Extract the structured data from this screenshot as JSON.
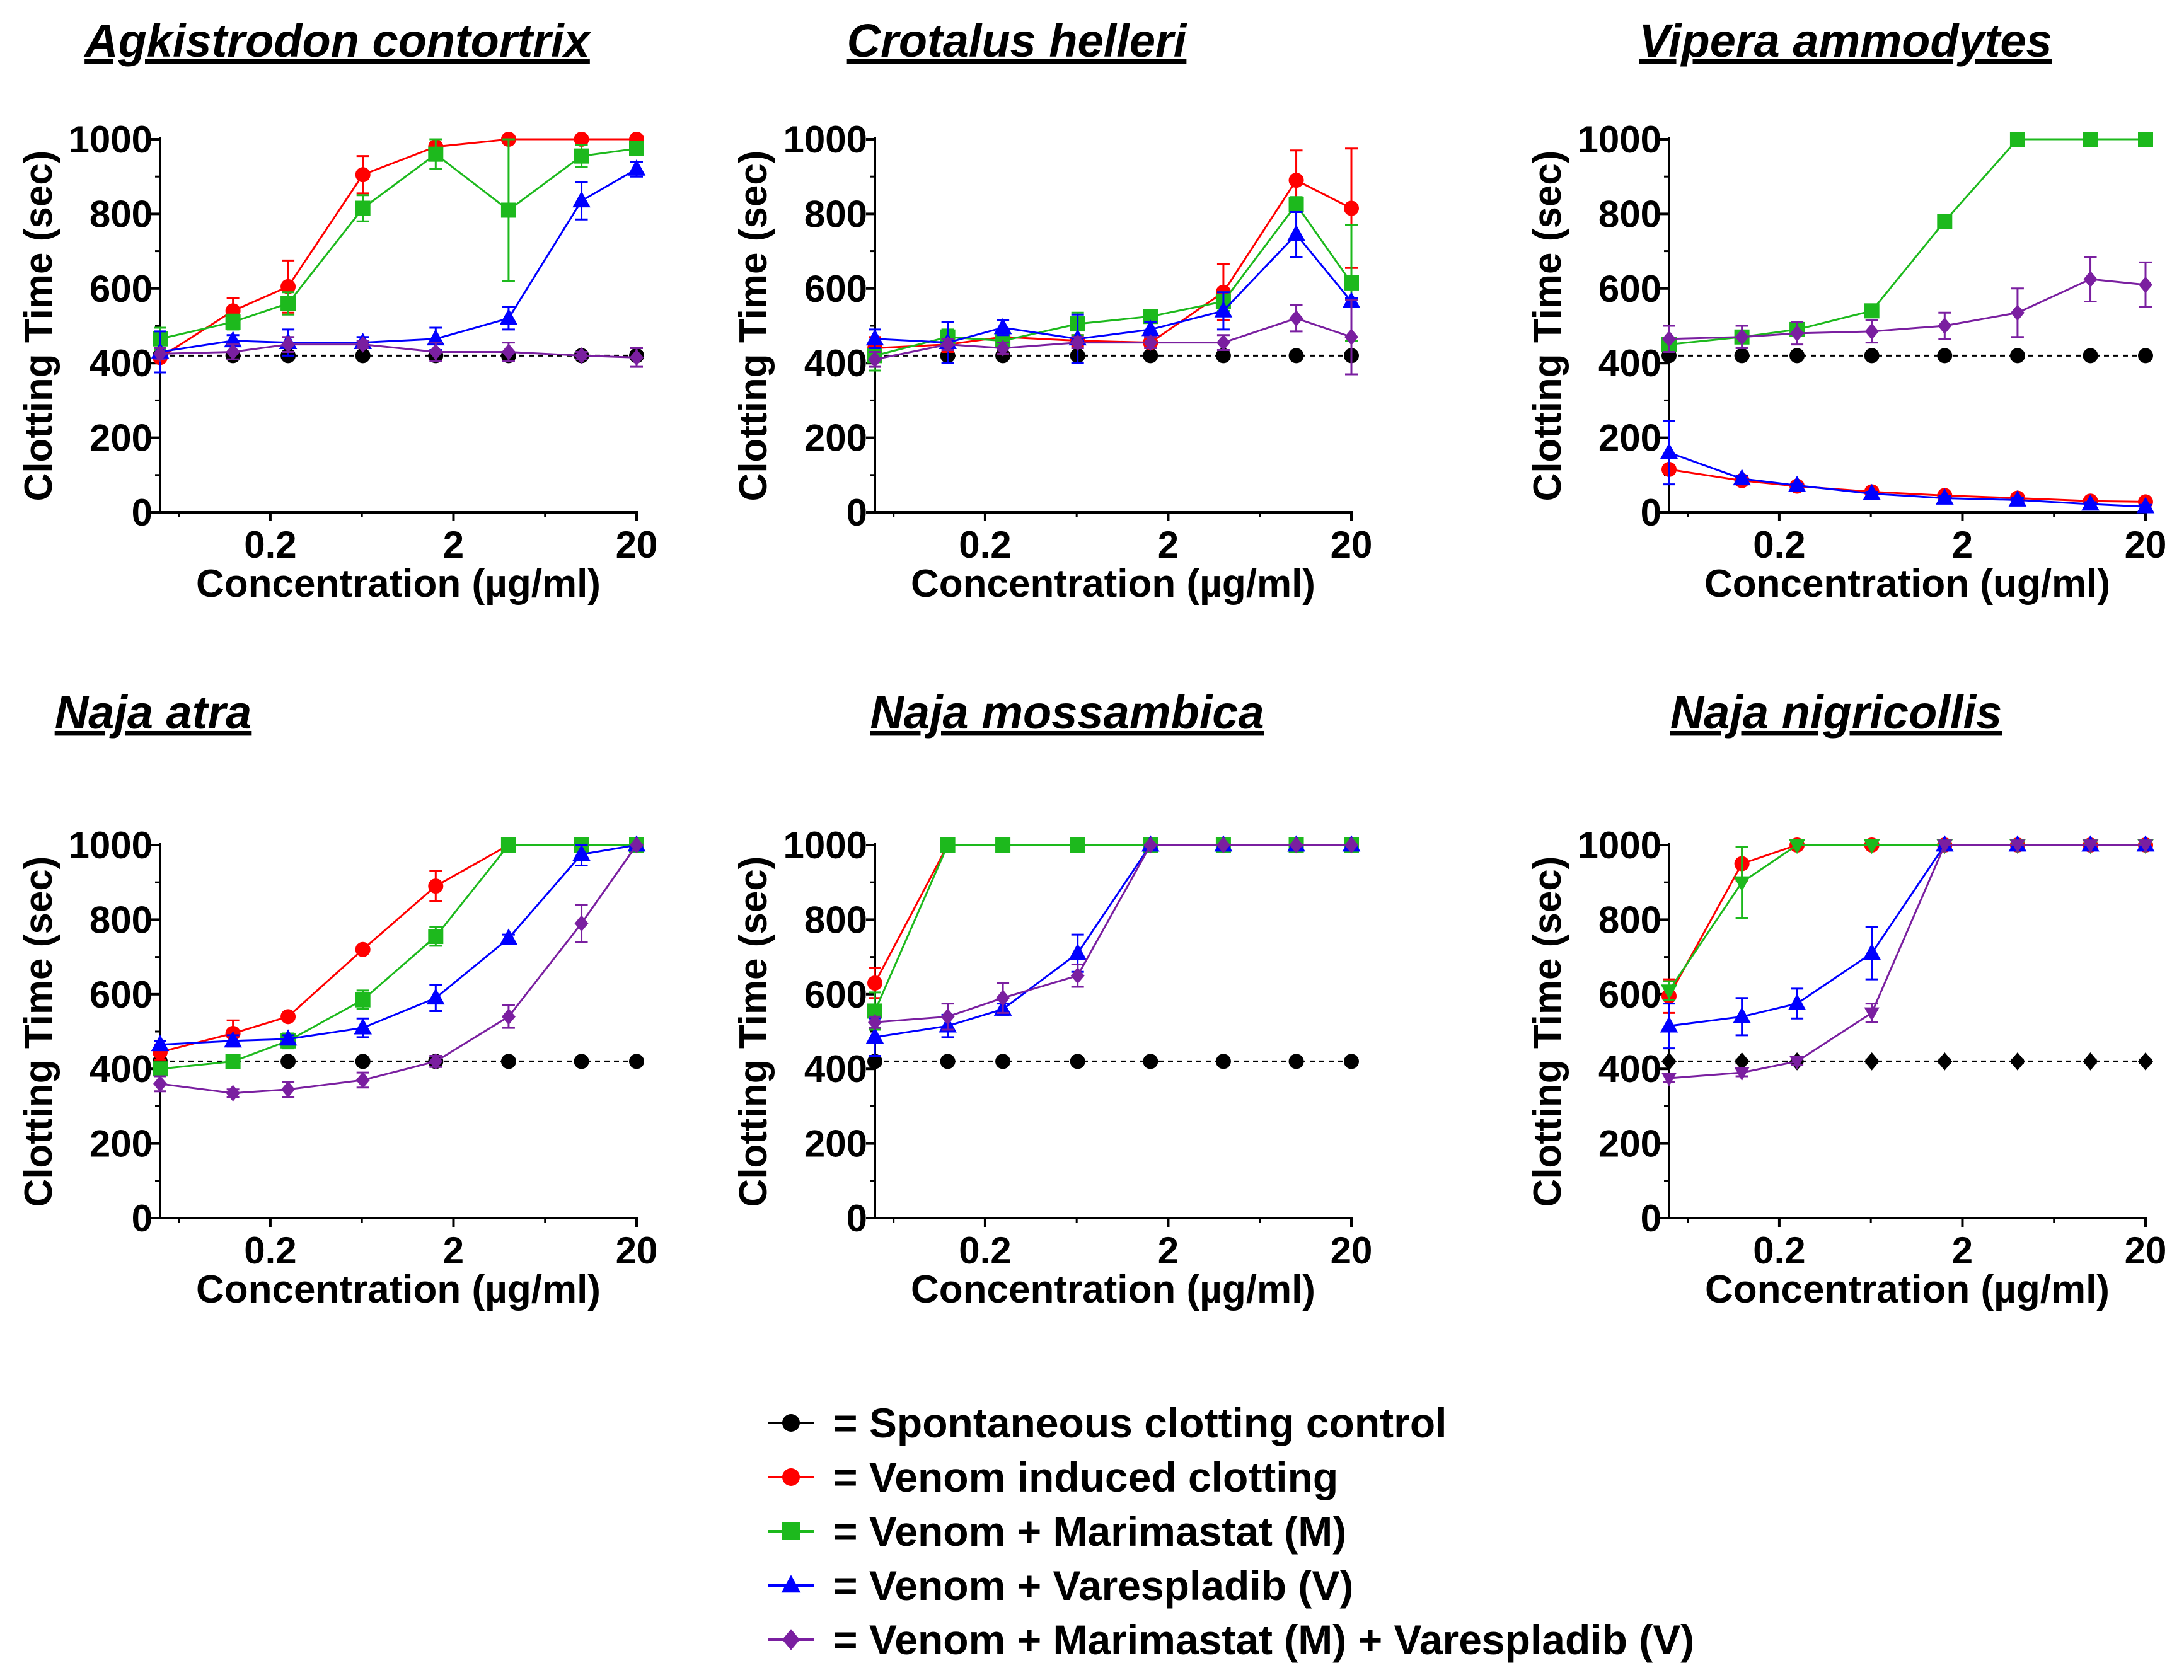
{
  "legend": [
    {
      "label": "= Spontaneous clotting control",
      "color": "#000000",
      "marker": "circle"
    },
    {
      "label": "= Venom induced clotting",
      "color": "#ff0000",
      "marker": "circle"
    },
    {
      "label": "= Venom + Marimastat (M)",
      "color": "#1db91d",
      "marker": "square"
    },
    {
      "label": "= Venom + Varespladib (V)",
      "color": "#0000ff",
      "marker": "triangle"
    },
    {
      "label": "= Venom + Marimastat (M) + Varespladib (V)",
      "color": "#7a1fa0",
      "marker": "diamond"
    }
  ],
  "chart_data": [
    {
      "type": "line",
      "title": "Agkistrodon contortrix",
      "xlabel": "Concentration (µg/ml)",
      "ylabel": "Clotting Time (sec)",
      "xscale": "log",
      "xlim": [
        0.05,
        20
      ],
      "ylim": [
        0,
        1000
      ],
      "xticks": [
        "0.2",
        "2",
        "20"
      ],
      "yticks": [
        "0",
        "200",
        "400",
        "600",
        "800",
        "1000"
      ],
      "x": [
        0.05,
        0.125,
        0.25,
        0.64,
        1.6,
        4,
        10,
        20
      ],
      "series": [
        {
          "name": "Spontaneous clotting control",
          "values": [
            420,
            420,
            420,
            420,
            420,
            420,
            420,
            420
          ],
          "err": [
            10,
            10,
            10,
            8,
            10,
            10,
            8,
            10
          ]
        },
        {
          "name": "Venom induced clotting",
          "values": [
            415,
            540,
            605,
            905,
            980,
            1000,
            1000,
            1000
          ],
          "err": [
            10,
            35,
            70,
            50,
            10,
            0,
            0,
            0
          ]
        },
        {
          "name": "Venom + Marimastat (M)",
          "values": [
            465,
            510,
            560,
            815,
            960,
            810,
            955,
            975
          ],
          "err": [
            30,
            20,
            30,
            35,
            40,
            190,
            30,
            10
          ]
        },
        {
          "name": "Venom + Varespladib (V)",
          "values": [
            430,
            460,
            455,
            455,
            465,
            520,
            835,
            920
          ],
          "err": [
            55,
            15,
            35,
            15,
            30,
            30,
            50,
            20
          ]
        },
        {
          "name": "Venom + Marimastat (M) + Varespladib (V)",
          "values": [
            425,
            430,
            450,
            450,
            430,
            430,
            420,
            415
          ],
          "err": [
            15,
            20,
            20,
            10,
            25,
            25,
            10,
            25
          ]
        }
      ]
    },
    {
      "type": "line",
      "title": "Crotalus helleri",
      "xlabel": "Concentration (µg/ml)",
      "ylabel": "Clotting Time (sec)",
      "xscale": "log",
      "xlim": [
        0.05,
        20
      ],
      "ylim": [
        0,
        1000
      ],
      "xticks": [
        "0.2",
        "2",
        "20"
      ],
      "yticks": [
        "0",
        "200",
        "400",
        "600",
        "800",
        "1000"
      ],
      "x": [
        0.05,
        0.125,
        0.25,
        0.64,
        1.6,
        4,
        10,
        20
      ],
      "series": [
        {
          "name": "Spontaneous clotting control",
          "values": [
            420,
            420,
            420,
            420,
            420,
            420,
            420,
            420
          ],
          "err": [
            8,
            8,
            8,
            8,
            8,
            8,
            8,
            8
          ]
        },
        {
          "name": "Venom induced clotting",
          "values": [
            440,
            450,
            470,
            460,
            455,
            590,
            890,
            815
          ],
          "err": [
            30,
            20,
            45,
            15,
            15,
            75,
            80,
            160
          ]
        },
        {
          "name": "Venom + Marimastat (M)",
          "values": [
            420,
            470,
            460,
            505,
            525,
            565,
            825,
            615
          ],
          "err": [
            40,
            20,
            20,
            30,
            15,
            25,
            20,
            155
          ]
        },
        {
          "name": "Venom + Varespladib (V)",
          "values": [
            465,
            455,
            495,
            465,
            490,
            540,
            745,
            565
          ],
          "err": [
            25,
            55,
            20,
            65,
            20,
            50,
            60,
            10
          ]
        },
        {
          "name": "Venom + Marimastat (M) + Varespladib (V)",
          "values": [
            410,
            450,
            440,
            455,
            455,
            455,
            520,
            470
          ],
          "err": [
            20,
            15,
            15,
            15,
            15,
            20,
            35,
            100
          ]
        }
      ]
    },
    {
      "type": "line",
      "title": "Vipera ammodytes",
      "xlabel": "Concentration (ug/ml)",
      "ylabel": "Clotting Time (sec)",
      "xscale": "log",
      "xlim": [
        0.05,
        20
      ],
      "ylim": [
        0,
        1000
      ],
      "xticks": [
        "0.2",
        "2",
        "20"
      ],
      "yticks": [
        "0",
        "200",
        "400",
        "600",
        "800",
        "1000"
      ],
      "x": [
        0.05,
        0.125,
        0.25,
        0.64,
        1.6,
        4,
        10,
        20
      ],
      "series": [
        {
          "name": "Spontaneous clotting control",
          "values": [
            420,
            420,
            420,
            420,
            420,
            420,
            420,
            420
          ],
          "err": [
            5,
            5,
            5,
            5,
            5,
            5,
            5,
            5
          ]
        },
        {
          "name": "Venom induced clotting",
          "values": [
            115,
            85,
            70,
            55,
            45,
            38,
            30,
            28
          ],
          "err": [
            10,
            8,
            5,
            5,
            5,
            5,
            5,
            5
          ]
        },
        {
          "name": "Venom + Marimastat (M)",
          "values": [
            450,
            470,
            490,
            540,
            780,
            1000,
            1000,
            1000
          ],
          "err": [
            15,
            10,
            10,
            15,
            15,
            0,
            0,
            0
          ]
        },
        {
          "name": "Venom + Varespladib (V)",
          "values": [
            160,
            90,
            72,
            50,
            38,
            33,
            22,
            15
          ],
          "err": [
            85,
            8,
            5,
            5,
            5,
            5,
            5,
            5
          ]
        },
        {
          "name": "Venom + Marimastat (M) + Varespladib (V)",
          "values": [
            465,
            470,
            480,
            485,
            500,
            535,
            625,
            610
          ],
          "err": [
            35,
            30,
            30,
            30,
            35,
            65,
            60,
            60
          ]
        }
      ]
    },
    {
      "type": "line",
      "title": "Naja atra",
      "xlabel": "Concentration (µg/ml)",
      "ylabel": "Clotting Time (sec)",
      "xscale": "log",
      "xlim": [
        0.05,
        20
      ],
      "ylim": [
        0,
        1000
      ],
      "xticks": [
        "0.2",
        "2",
        "20"
      ],
      "yticks": [
        "0",
        "200",
        "400",
        "600",
        "800",
        "1000"
      ],
      "x": [
        0.05,
        0.125,
        0.25,
        0.64,
        1.6,
        4,
        10,
        20
      ],
      "series": [
        {
          "name": "Spontaneous clotting control",
          "values": [
            420,
            420,
            420,
            420,
            420,
            420,
            420,
            420
          ],
          "err": [
            5,
            5,
            5,
            5,
            5,
            5,
            5,
            5
          ]
        },
        {
          "name": "Venom induced clotting",
          "values": [
            445,
            495,
            540,
            720,
            890,
            1000,
            1000,
            1000
          ],
          "err": [
            20,
            35,
            10,
            10,
            40,
            0,
            0,
            0
          ]
        },
        {
          "name": "Venom + Marimastat (M)",
          "values": [
            400,
            420,
            475,
            585,
            755,
            1000,
            1000,
            1000
          ],
          "err": [
            15,
            10,
            20,
            25,
            25,
            0,
            0,
            0
          ]
        },
        {
          "name": "Venom + Varespladib (V)",
          "values": [
            465,
            475,
            480,
            510,
            590,
            750,
            975,
            1000
          ],
          "err": [
            10,
            15,
            10,
            25,
            35,
            10,
            30,
            0
          ]
        },
        {
          "name": "Venom + Marimastat (M) + Varespladib (V)",
          "values": [
            360,
            335,
            345,
            370,
            420,
            540,
            790,
            1000
          ],
          "err": [
            20,
            10,
            20,
            20,
            15,
            30,
            50,
            0
          ]
        }
      ]
    },
    {
      "type": "line",
      "title": "Naja mossambica",
      "xlabel": "Concentration (µg/ml)",
      "ylabel": "Clotting Time (sec)",
      "xscale": "log",
      "xlim": [
        0.05,
        20
      ],
      "ylim": [
        0,
        1000
      ],
      "xticks": [
        "0.2",
        "2",
        "20"
      ],
      "yticks": [
        "0",
        "200",
        "400",
        "600",
        "800",
        "1000"
      ],
      "x": [
        0.05,
        0.125,
        0.25,
        0.64,
        1.6,
        4,
        10,
        20
      ],
      "series": [
        {
          "name": "Spontaneous clotting control",
          "values": [
            420,
            420,
            420,
            420,
            420,
            420,
            420,
            420
          ],
          "err": [
            5,
            5,
            5,
            5,
            5,
            5,
            5,
            5
          ]
        },
        {
          "name": "Venom induced clotting",
          "values": [
            630,
            1000,
            1000,
            1000,
            1000,
            1000,
            1000,
            1000
          ],
          "err": [
            40,
            0,
            0,
            0,
            0,
            0,
            0,
            0
          ]
        },
        {
          "name": "Venom + Marimastat (M)",
          "values": [
            555,
            1000,
            1000,
            1000,
            1000,
            1000,
            1000,
            1000
          ],
          "err": [
            50,
            0,
            0,
            0,
            0,
            0,
            0,
            0
          ]
        },
        {
          "name": "Venom + Varespladib (V)",
          "values": [
            485,
            515,
            560,
            710,
            1000,
            1000,
            1000,
            1000
          ],
          "err": [
            50,
            30,
            15,
            50,
            0,
            0,
            0,
            0
          ]
        },
        {
          "name": "Venom + Marimastat (M) + Varespladib (V)",
          "values": [
            525,
            540,
            590,
            650,
            1000,
            1000,
            1000,
            1000
          ],
          "err": [
            15,
            35,
            40,
            30,
            0,
            0,
            0,
            0
          ]
        }
      ]
    },
    {
      "type": "line",
      "title": "Naja nigricollis",
      "xlabel": "Concentration (µg/ml)",
      "ylabel": "Clotting Time (sec)",
      "xscale": "log",
      "xlim": [
        0.05,
        20
      ],
      "ylim": [
        0,
        1000
      ],
      "xticks": [
        "0.2",
        "2",
        "20"
      ],
      "yticks": [
        "0",
        "200",
        "400",
        "600",
        "800",
        "1000"
      ],
      "x": [
        0.05,
        0.125,
        0.25,
        0.64,
        1.6,
        4,
        10,
        20
      ],
      "series": [
        {
          "name": "Spontaneous clotting control",
          "values": [
            420,
            420,
            420,
            420,
            420,
            420,
            420,
            420
          ],
          "err": [
            5,
            5,
            5,
            5,
            5,
            5,
            5,
            5
          ],
          "marker": "diamond"
        },
        {
          "name": "Venom induced clotting",
          "values": [
            595,
            950,
            1000,
            1000,
            1000,
            1000,
            1000,
            1000
          ],
          "err": [
            45,
            45,
            0,
            0,
            0,
            0,
            0,
            0
          ]
        },
        {
          "name": "Venom + Marimastat (M)",
          "values": [
            610,
            900,
            1000,
            1000,
            1000,
            1000,
            1000,
            1000
          ],
          "err": [
            25,
            95,
            0,
            0,
            0,
            0,
            0,
            0
          ],
          "marker": "down-triangle"
        },
        {
          "name": "Venom + Varespladib (V)",
          "values": [
            515,
            540,
            575,
            710,
            1000,
            1000,
            1000,
            1000
          ],
          "err": [
            60,
            50,
            40,
            70,
            0,
            0,
            0,
            0
          ]
        },
        {
          "name": "Venom + Marimastat (M) + Varespladib (V)",
          "values": [
            375,
            390,
            420,
            550,
            1000,
            1000,
            1000,
            1000
          ],
          "err": [
            10,
            10,
            10,
            25,
            0,
            0,
            0,
            0
          ],
          "marker": "down-triangle"
        }
      ]
    }
  ]
}
